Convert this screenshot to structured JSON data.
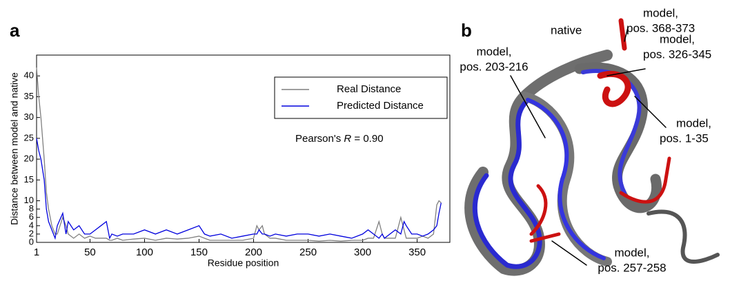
{
  "panel_labels": [
    "a",
    "b"
  ],
  "chart_data": {
    "type": "line",
    "xlabel": "Residue position",
    "ylabel": "Distance between model and native",
    "x": [
      1,
      3,
      5,
      8,
      10,
      12,
      15,
      18,
      20,
      25,
      28,
      30,
      35,
      40,
      45,
      50,
      55,
      60,
      65,
      68,
      70,
      75,
      80,
      90,
      100,
      110,
      120,
      130,
      140,
      150,
      155,
      160,
      170,
      180,
      190,
      200,
      203,
      205,
      208,
      210,
      215,
      220,
      230,
      240,
      250,
      260,
      270,
      280,
      290,
      300,
      305,
      310,
      315,
      318,
      320,
      330,
      335,
      338,
      340,
      345,
      350,
      355,
      360,
      365,
      368,
      370,
      372
    ],
    "series": [
      {
        "name": "Real Distance",
        "color": "#7f7f7f",
        "values": [
          42,
          35,
          30,
          20,
          12,
          8,
          4,
          2,
          2,
          6,
          4,
          2,
          1,
          2,
          1,
          1.5,
          1,
          1,
          1,
          0.5,
          0.5,
          1,
          0.5,
          0.8,
          1,
          0.5,
          1,
          0.8,
          1,
          1.5,
          1,
          0.5,
          0.5,
          0.5,
          0.5,
          1,
          4,
          3,
          4,
          2,
          1,
          1,
          0.5,
          0.5,
          0.5,
          0.3,
          0.5,
          0.3,
          0.5,
          0.5,
          1,
          1,
          5,
          2,
          1,
          1,
          6,
          3,
          1,
          1,
          1,
          1.5,
          1,
          2,
          9,
          10,
          9.5
        ]
      },
      {
        "name": "Predicted Distance",
        "color": "#0000dd",
        "values": [
          25,
          22,
          20,
          15,
          8,
          5,
          3,
          1,
          4,
          7,
          2,
          5,
          3,
          4,
          2,
          2,
          3,
          4,
          5,
          1,
          2,
          1.5,
          2,
          2,
          3,
          2,
          3,
          2,
          3,
          4,
          2,
          1.5,
          2,
          1,
          1.5,
          2,
          2,
          3,
          2,
          2,
          1.5,
          2,
          1.5,
          2,
          2,
          1.5,
          2,
          1.5,
          1,
          2,
          3,
          2,
          1,
          2,
          1,
          3,
          2,
          5,
          4,
          2,
          2,
          1.5,
          2,
          3,
          4,
          7,
          9.5
        ]
      }
    ],
    "xlim": [
      1,
      380
    ],
    "xticks": [
      1,
      50,
      100,
      150,
      200,
      250,
      300,
      350
    ],
    "ylim": [
      0,
      45
    ],
    "yticks": [
      0,
      2,
      4,
      6,
      8,
      10,
      15,
      20,
      25,
      30,
      35,
      40
    ],
    "legend": "upper right",
    "annotation": {
      "prefix": "Pearson's ",
      "italic": "R",
      "suffix": " = 0.90"
    }
  },
  "structure_labels": {
    "native": "native",
    "callouts": [
      [
        "model,",
        "pos. 368-373"
      ],
      [
        "model,",
        "pos. 203-216"
      ],
      [
        "model,",
        "pos. 326-345"
      ],
      [
        "model,",
        "pos. 1-35"
      ],
      [
        "model,",
        "pos. 257-258"
      ]
    ]
  }
}
